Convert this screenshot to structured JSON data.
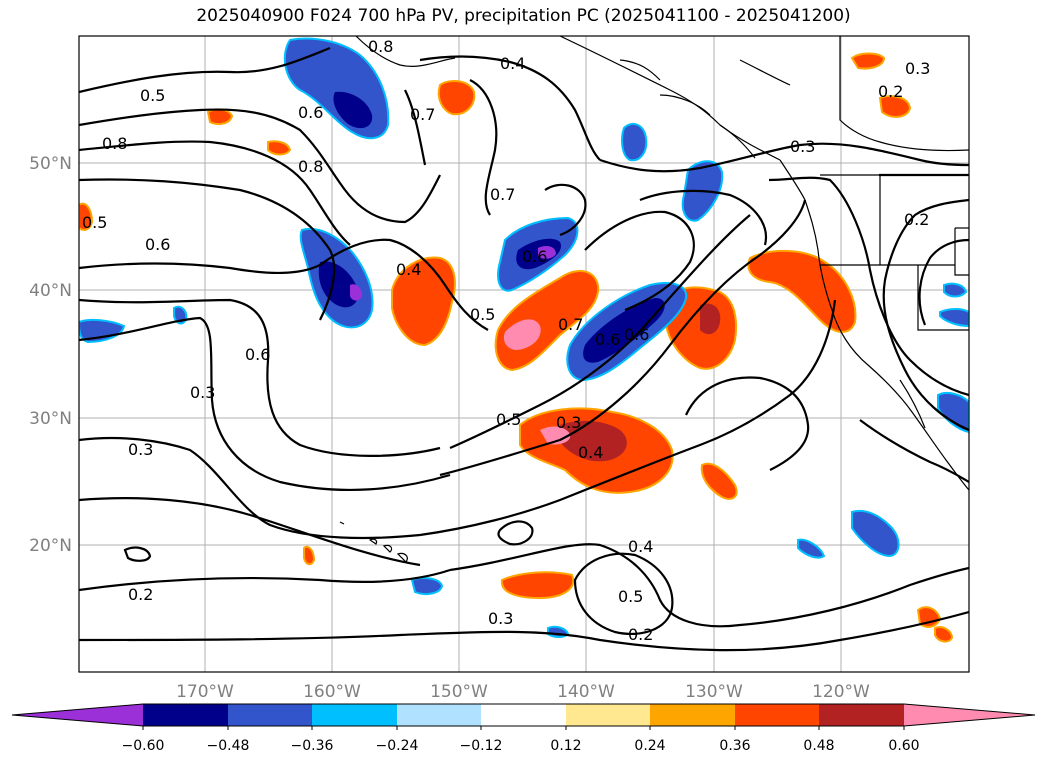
{
  "title": "2025040900 F024 700 hPa PV, precipitation PC (2025041100 - 2025041200)",
  "map": {
    "lon_labels": [
      "170°W",
      "160°W",
      "150°W",
      "140°W",
      "130°W",
      "120°W"
    ],
    "lat_labels": [
      "50°N",
      "40°N",
      "30°N",
      "20°N"
    ],
    "gridlines": true
  },
  "contour_labels": [
    "0.8",
    "0.4",
    "0.3",
    "0.5",
    "0.7",
    "0.2",
    "0.8",
    "0.6",
    "0.5",
    "0.6",
    "0.7",
    "0.4",
    "0.6",
    "0.5",
    "0.7",
    "0.6",
    "0.6",
    "0.3",
    "0.5",
    "0.3",
    "0.4",
    "0.3",
    "0.4",
    "0.5",
    "0.3",
    "0.2",
    "0.2",
    "0.6",
    "0.8",
    "0.2",
    "0.3"
  ],
  "colorbar": {
    "tick_labels": [
      "−0.60",
      "−0.48",
      "−0.36",
      "−0.24",
      "−0.12",
      "0.12",
      "0.24",
      "0.36",
      "0.48",
      "0.60"
    ],
    "colors": [
      "#9b30d9",
      "#00008b",
      "#3355cc",
      "#00bfff",
      "#b0e2ff",
      "#ffffff",
      "#ffe88f",
      "#ffa500",
      "#ff4500",
      "#b22222",
      "#ff8cb0"
    ],
    "extend": "both"
  }
}
